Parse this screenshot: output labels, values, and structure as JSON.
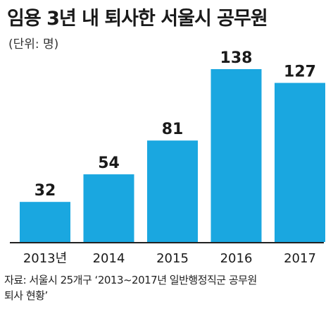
{
  "title": "임용 3년 내 퇴사한 서울시 공무원",
  "unit_note": "(단위: 명)",
  "source_line1": "자료: 서울시 25개구 ‘2013~2017년 일반행정직군 공무원",
  "source_line2": "퇴사 현황’",
  "colors": {
    "bar": "#1aa7e0",
    "axis": "#222222",
    "text": "#1a1a1a"
  },
  "chart_data": {
    "type": "bar",
    "categories": [
      "2013년",
      "2014",
      "2015",
      "2016",
      "2017"
    ],
    "values": [
      32,
      54,
      81,
      138,
      127
    ],
    "data_labels": [
      "32",
      "54",
      "81",
      "138",
      "127"
    ],
    "title": "임용 3년 내 퇴사한 서울시 공무원",
    "xlabel": "",
    "ylabel": "",
    "ylim": [
      0,
      138
    ],
    "grid": false,
    "legend": "none"
  }
}
